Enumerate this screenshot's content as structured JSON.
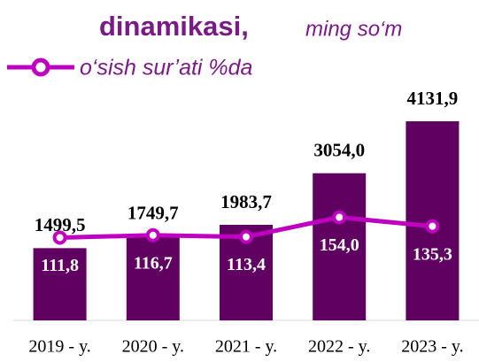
{
  "chart_data": {
    "type": "bar",
    "title": "dinamikasi,",
    "subtitle": "ming so‘m",
    "categories": [
      "2019 - y.",
      "2020 - y.",
      "2021 - y.",
      "2022 - y.",
      "2023 - y."
    ],
    "ylim": [
      0,
      4500
    ],
    "y2lim": [
      -60,
      390
    ],
    "series": [
      {
        "name": null,
        "type": "bar",
        "color": "#600060",
        "values": [
          1499.5,
          1749.7,
          1983.7,
          3054.0,
          4131.9
        ],
        "value_labels": [
          "1499,5",
          "1749,7",
          "1983,7",
          "3054,0",
          "4131,9"
        ]
      },
      {
        "name": "o‘sish sur’ati %da",
        "type": "line",
        "axis": "y2",
        "color": "#c000c0",
        "values": [
          111.8,
          116.7,
          113.4,
          154.0,
          135.3
        ],
        "value_labels": [
          "111,8",
          "116,7",
          "113,4",
          "154,0",
          "135,3"
        ]
      }
    ]
  }
}
